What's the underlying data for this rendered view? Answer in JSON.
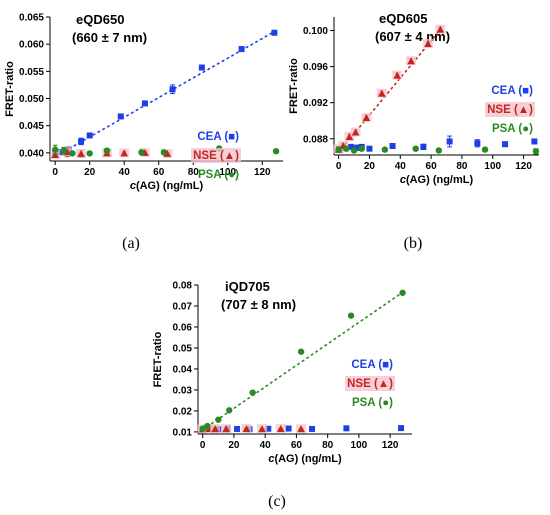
{
  "colors": {
    "cea": "#1f3fe6",
    "nse": "#c0281c",
    "nse_highlight": "#f5c2cf",
    "psa": "#2a8a22",
    "axis": "#000000"
  },
  "chart_data": [
    {
      "type": "scatter",
      "panel_label": "(a)",
      "title": "eQD650",
      "subtitle": "(660 ± 7 nm)",
      "xlabel_italic": "c",
      "xlabel": "(AG) (ng/mL)",
      "ylabel": "FRET-ratio",
      "xlim": [
        -3,
        132
      ],
      "ylim": [
        0.0385,
        0.065
      ],
      "xticks": [
        0,
        20,
        40,
        60,
        80,
        100,
        120
      ],
      "yticks": [
        0.04,
        0.045,
        0.05,
        0.055,
        0.06,
        0.065
      ],
      "ytick_labels": [
        "0.040",
        "0.045",
        "0.050",
        "0.055",
        "0.060",
        "0.065"
      ],
      "grid": false,
      "legend_position": "right",
      "series": [
        {
          "name": "CEA (■)",
          "marker": "square",
          "color": "#1f3fe6",
          "x": [
            0,
            3,
            8,
            15,
            20,
            38,
            52,
            68,
            85,
            108,
            127
          ],
          "y": [
            0.0398,
            0.0401,
            0.0406,
            0.0421,
            0.0432,
            0.0467,
            0.0491,
            0.0517,
            0.0557,
            0.0591,
            0.0621
          ],
          "err": [
            0.0004,
            0.0003,
            0.0003,
            0.0006,
            0.0004,
            0.0003,
            0.0003,
            0.0008,
            0.0003,
            0.0003,
            0.0003
          ],
          "fit": {
            "x": [
              0,
              128
            ],
            "y": [
              0.0393,
              0.0625
            ]
          }
        },
        {
          "name": "NSE (▲)",
          "marker": "triangle",
          "color": "#c0281c",
          "x": [
            0,
            7,
            15,
            30,
            40,
            52,
            65
          ],
          "y": [
            0.0396,
            0.0401,
            0.0398,
            0.0399,
            0.0399,
            0.04,
            0.0398
          ],
          "err": [
            0.0004,
            0.0008,
            0.0006,
            0.0003,
            0.0004,
            0.0003,
            0.0003
          ]
        },
        {
          "name": "PSA (●)",
          "marker": "circle",
          "color": "#2a8a22",
          "x": [
            0,
            5,
            10,
            20,
            30,
            50,
            63,
            95,
            128
          ],
          "y": [
            0.0406,
            0.0404,
            0.0399,
            0.0399,
            0.0404,
            0.0401,
            0.0401,
            0.0408,
            0.0403
          ],
          "err": [
            0.0008,
            0.0006,
            0.0003,
            0.0003,
            0.0004,
            0.0003,
            0.0003,
            0.0003,
            0.0003
          ]
        }
      ]
    },
    {
      "type": "scatter",
      "panel_label": "(b)",
      "title": "eQD605",
      "subtitle": "(607 ± 4 nm)",
      "xlabel_italic": "c",
      "xlabel": "(AG) (ng/mL)",
      "ylabel": "FRET-ratio",
      "xlim": [
        -3,
        130
      ],
      "ylim": [
        0.0862,
        0.1015
      ],
      "xticks": [
        0,
        20,
        40,
        60,
        80,
        100,
        120
      ],
      "yticks": [
        0.088,
        0.092,
        0.096,
        0.1
      ],
      "ytick_labels": [
        "0.088",
        "0.092",
        "0.096",
        "0.100"
      ],
      "grid": false,
      "legend_position": "right",
      "series": [
        {
          "name": "CEA (■)",
          "marker": "square",
          "color": "#1f3fe6",
          "x": [
            0,
            3,
            8,
            12,
            15,
            20,
            35,
            55,
            72,
            90,
            108,
            127
          ],
          "y": [
            0.0868,
            0.087,
            0.0871,
            0.087,
            0.0871,
            0.0869,
            0.0872,
            0.0871,
            0.0877,
            0.0875,
            0.0874,
            0.0877
          ],
          "err": [
            0.0003,
            0.0003,
            0.0002,
            0.0003,
            0.0002,
            0.0002,
            0.0002,
            0.0003,
            0.0006,
            0.0004,
            0.0002,
            0.0002
          ]
        },
        {
          "name": "NSE (▲)",
          "marker": "triangle",
          "color": "#c0281c",
          "x": [
            0,
            3,
            7,
            11,
            18,
            28,
            38,
            47,
            58,
            66
          ],
          "y": [
            0.0868,
            0.0872,
            0.0882,
            0.0887,
            0.0903,
            0.093,
            0.095,
            0.0966,
            0.0985,
            0.1001
          ],
          "err": [
            0.0002,
            0.0003,
            0.0003,
            0.0003,
            0.0003,
            0.0003,
            0.0003,
            0.0003,
            0.0003,
            0.0003
          ],
          "fit": {
            "x": [
              0,
              68
            ],
            "y": [
              0.0865,
              0.1005
            ]
          }
        },
        {
          "name": "PSA (●)",
          "marker": "circle",
          "color": "#2a8a22",
          "x": [
            0,
            5,
            10,
            15,
            30,
            50,
            65,
            95,
            128
          ],
          "y": [
            0.0868,
            0.0869,
            0.0867,
            0.0869,
            0.0868,
            0.0869,
            0.0867,
            0.0868,
            0.0866
          ],
          "err": [
            0.0003,
            0.0002,
            0.0002,
            0.0002,
            0.0002,
            0.0002,
            0.0002,
            0.0002,
            0.0003
          ]
        }
      ]
    },
    {
      "type": "scatter",
      "panel_label": "(c)",
      "title": "iQD705",
      "subtitle": "(707 ± 8 nm)",
      "xlabel_italic": "c",
      "xlabel": "(AG) (ng/mL)",
      "ylabel": "FRET-ratio",
      "xlim": [
        -3,
        134
      ],
      "ylim": [
        0.009,
        0.08
      ],
      "xticks": [
        0,
        20,
        40,
        60,
        80,
        100,
        120
      ],
      "yticks": [
        0.01,
        0.02,
        0.03,
        0.04,
        0.05,
        0.06,
        0.07,
        0.08
      ],
      "ytick_labels": [
        "0.01",
        "0.02",
        "0.03",
        "0.04",
        "0.05",
        "0.06",
        "0.07",
        "0.08"
      ],
      "grid": false,
      "legend_position": "right",
      "series": [
        {
          "name": "CEA (■)",
          "marker": "square",
          "color": "#1f3fe6",
          "x": [
            0,
            5,
            10,
            16,
            22,
            30,
            42,
            55,
            70,
            92,
            127
          ],
          "y": [
            0.0112,
            0.0115,
            0.0113,
            0.0116,
            0.0114,
            0.0113,
            0.0115,
            0.0116,
            0.0114,
            0.0117,
            0.0118
          ],
          "err": [
            0.0004,
            0.0005,
            0.0004,
            0.0004,
            0.0004,
            0.0004,
            0.0005,
            0.0005,
            0.0004,
            0.0005,
            0.0005
          ]
        },
        {
          "name": "NSE (▲)",
          "marker": "triangle",
          "color": "#c0281c",
          "x": [
            0,
            4,
            8,
            15,
            28,
            38,
            50,
            63
          ],
          "y": [
            0.0112,
            0.0114,
            0.0113,
            0.0113,
            0.0114,
            0.0113,
            0.0114,
            0.0113
          ],
          "err": [
            0.0003,
            0.0004,
            0.0003,
            0.0003,
            0.0003,
            0.0003,
            0.0003,
            0.0003
          ]
        },
        {
          "name": "PSA (●)",
          "marker": "circle",
          "color": "#2a8a22",
          "x": [
            0,
            3,
            10,
            17,
            32,
            63,
            95,
            128
          ],
          "y": [
            0.0115,
            0.0128,
            0.0158,
            0.0203,
            0.0287,
            0.0482,
            0.0654,
            0.0763
          ],
          "err": [
            0.0004,
            0.0004,
            0.0004,
            0.0004,
            0.0004,
            0.0006,
            0.0005,
            0.0005
          ],
          "fit": {
            "x": [
              0,
              128
            ],
            "y": [
              0.011,
              0.0765
            ]
          }
        }
      ]
    }
  ]
}
